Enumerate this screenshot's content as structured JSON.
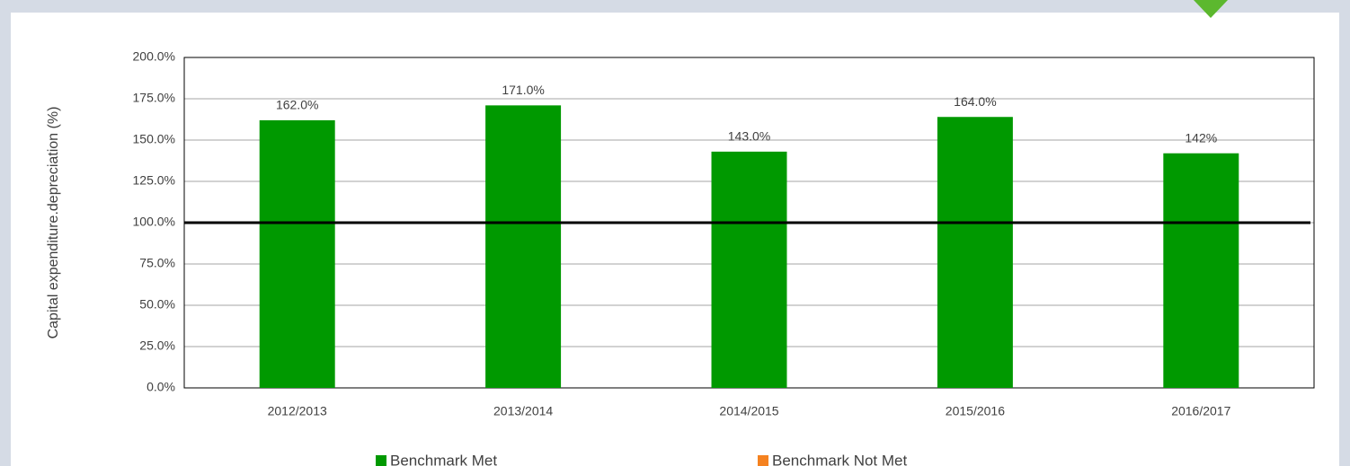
{
  "chart_data": {
    "type": "bar",
    "y_label": "Capital expenditure.depreciation (%)",
    "categories": [
      "2012/2013",
      "2013/2014",
      "2014/2015",
      "2015/2016",
      "2016/2017"
    ],
    "series": [
      {
        "name": "Benchmark Met",
        "color": "#009900",
        "values": [
          162,
          171,
          143,
          164,
          142
        ],
        "value_labels": [
          "162.0%",
          "171.0%",
          "143.0%",
          "164.0%",
          "142%"
        ]
      },
      {
        "name": "Benchmark Not Met",
        "color": "#f58220",
        "values": [
          null,
          null,
          null,
          null,
          null
        ]
      }
    ],
    "benchmark": 100,
    "ylim": [
      0,
      200
    ],
    "yticks": [
      {
        "value": 0,
        "label": "0.0%"
      },
      {
        "value": 25,
        "label": "25.0%"
      },
      {
        "value": 50,
        "label": "50.0%"
      },
      {
        "value": 75,
        "label": "75.0%"
      },
      {
        "value": 100,
        "label": "100.0%"
      },
      {
        "value": 125,
        "label": "125.0%"
      },
      {
        "value": 150,
        "label": "150.0%"
      },
      {
        "value": 175,
        "label": "175.0%"
      },
      {
        "value": 200,
        "label": "200.0%"
      }
    ],
    "grid": true
  }
}
